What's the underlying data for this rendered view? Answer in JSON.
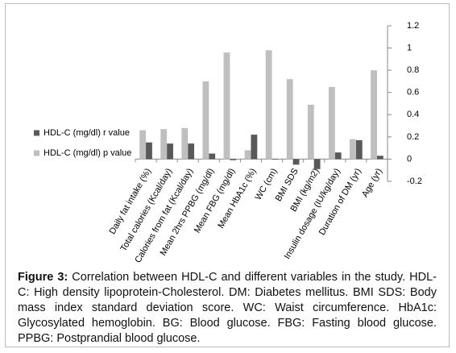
{
  "chart_data": {
    "type": "bar",
    "categories": [
      "Daily fat intake (%)",
      "Total calories (Kcal/day)",
      "Calories from fat (Kcal/day)",
      "Mean 2hrs PPBG (mg/dl)",
      "Mean FBG (mg/dl)",
      "Mean HbA1c (%)",
      "WC (cm)",
      "BMI SDS",
      "BMI (kg/m2)",
      "Insulin dosage (IU/kg/day)",
      "Duration of DM (yr)",
      "Age (yr)"
    ],
    "series": [
      {
        "name": "HDL-C (mg/dl) r value",
        "color": "#595959",
        "values": [
          0.15,
          0.14,
          0.14,
          0.05,
          -0.01,
          0.22,
          -0.005,
          -0.05,
          -0.09,
          0.06,
          0.17,
          0.03
        ]
      },
      {
        "name": "HDL-C (mg/dl) p value",
        "color": "#bfbfbf",
        "values": [
          0.26,
          0.27,
          0.28,
          0.7,
          0.96,
          0.08,
          0.98,
          0.72,
          0.49,
          0.65,
          0.18,
          0.8
        ]
      }
    ],
    "ylim": [
      -0.2,
      1.2
    ],
    "yticks": [
      -0.2,
      0,
      0.2,
      0.4,
      0.6,
      0.8,
      1,
      1.2
    ],
    "y_axis_side": "right",
    "legend_position": "left"
  },
  "caption": {
    "label": "Figure 3:",
    "text": "Correlation between HDL-C and different variables in the study. HDL-C: High density lipoprotein-Cholesterol. DM: Diabetes mellitus. BMI SDS: Body mass index standard deviation score. WC: Waist circumference. HbA1c: Glycosylated hemoglobin. BG: Blood glucose. FBG: Fasting blood glucose. PPBG: Postprandial blood glucose."
  }
}
